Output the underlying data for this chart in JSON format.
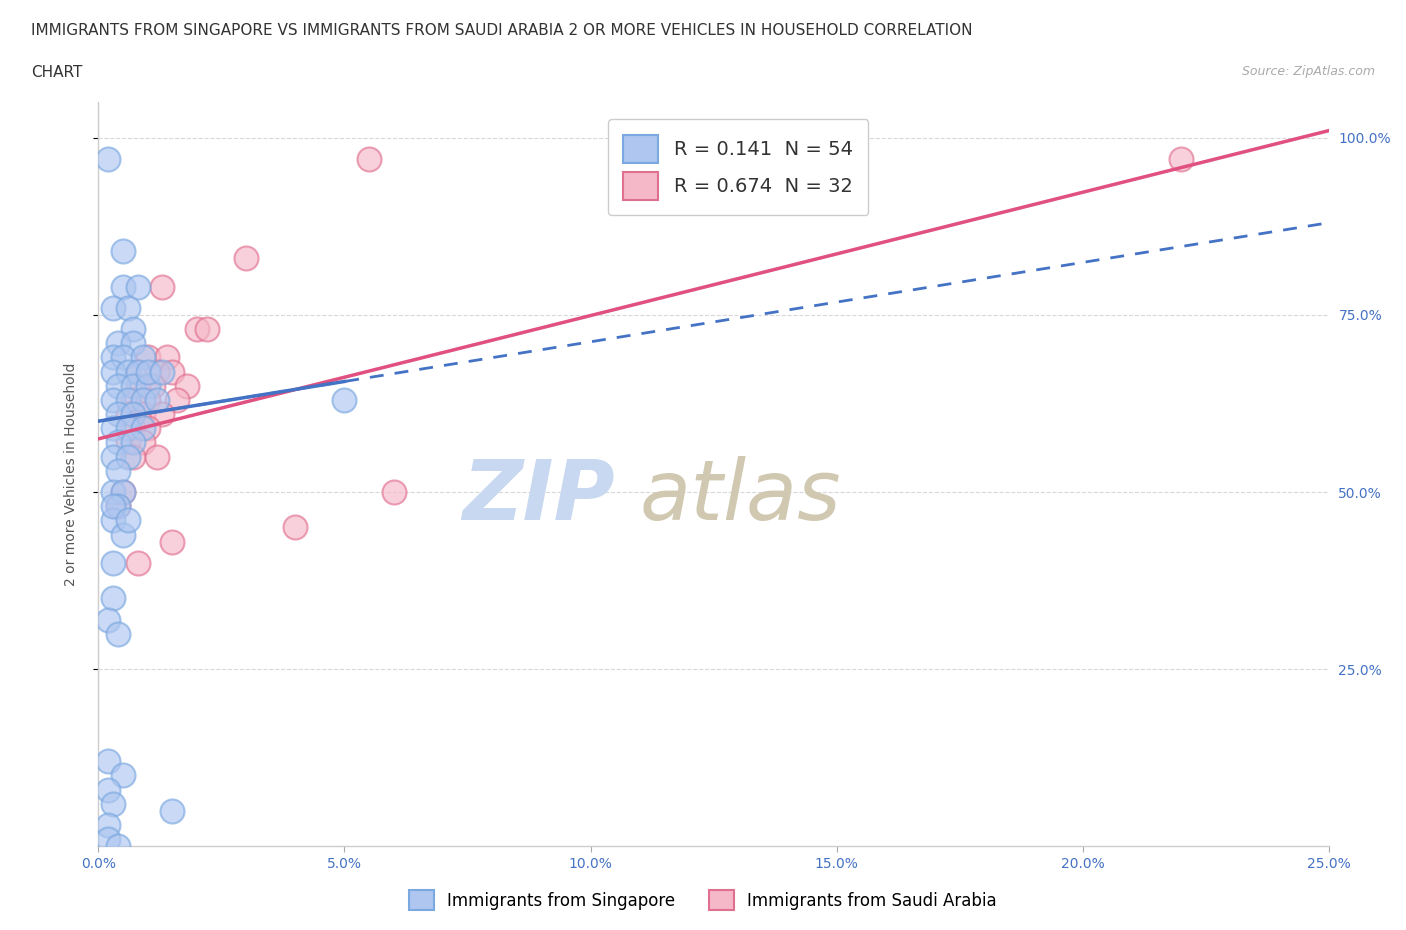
{
  "title_line1": "IMMIGRANTS FROM SINGAPORE VS IMMIGRANTS FROM SAUDI ARABIA 2 OR MORE VEHICLES IN HOUSEHOLD CORRELATION",
  "title_line2": "CHART",
  "source": "Source: ZipAtlas.com",
  "ylabel": "2 or more Vehicles in Household",
  "watermark": "ZIPatlas",
  "legend_entries": [
    {
      "label_r": "R = ",
      "r_val": "0.141",
      "label_n": "  N = ",
      "n_val": "54"
    },
    {
      "label_r": "R = ",
      "r_val": "0.674",
      "label_n": "  N = ",
      "n_val": "32"
    }
  ],
  "bottom_legend": [
    {
      "label": "Immigrants from Singapore",
      "color": "#aec6f0"
    },
    {
      "label": "Immigrants from Saudi Arabia",
      "color": "#f5b8c8"
    }
  ],
  "xmin": 0.0,
  "xmax": 0.25,
  "ymin": 0.0,
  "ymax": 1.05,
  "xtick_labels": [
    "0.0%",
    "5.0%",
    "10.0%",
    "15.0%",
    "20.0%",
    "25.0%"
  ],
  "xtick_vals": [
    0.0,
    0.05,
    0.1,
    0.15,
    0.2,
    0.25
  ],
  "ytick_labels_right": [
    "25.0%",
    "50.0%",
    "75.0%",
    "100.0%"
  ],
  "ytick_vals_right": [
    0.25,
    0.5,
    0.75,
    1.0
  ],
  "blue_scatter": [
    [
      0.002,
      0.97
    ],
    [
      0.005,
      0.84
    ],
    [
      0.005,
      0.79
    ],
    [
      0.008,
      0.79
    ],
    [
      0.003,
      0.76
    ],
    [
      0.006,
      0.76
    ],
    [
      0.007,
      0.73
    ],
    [
      0.004,
      0.71
    ],
    [
      0.007,
      0.71
    ],
    [
      0.003,
      0.69
    ],
    [
      0.005,
      0.69
    ],
    [
      0.009,
      0.69
    ],
    [
      0.003,
      0.67
    ],
    [
      0.006,
      0.67
    ],
    [
      0.008,
      0.67
    ],
    [
      0.004,
      0.65
    ],
    [
      0.007,
      0.65
    ],
    [
      0.01,
      0.65
    ],
    [
      0.003,
      0.63
    ],
    [
      0.006,
      0.63
    ],
    [
      0.009,
      0.63
    ],
    [
      0.004,
      0.61
    ],
    [
      0.007,
      0.61
    ],
    [
      0.003,
      0.59
    ],
    [
      0.006,
      0.59
    ],
    [
      0.009,
      0.59
    ],
    [
      0.004,
      0.57
    ],
    [
      0.007,
      0.57
    ],
    [
      0.003,
      0.55
    ],
    [
      0.006,
      0.55
    ],
    [
      0.004,
      0.53
    ],
    [
      0.003,
      0.5
    ],
    [
      0.005,
      0.5
    ],
    [
      0.004,
      0.48
    ],
    [
      0.003,
      0.46
    ],
    [
      0.005,
      0.44
    ],
    [
      0.01,
      0.67
    ],
    [
      0.013,
      0.67
    ],
    [
      0.012,
      0.63
    ],
    [
      0.05,
      0.63
    ],
    [
      0.003,
      0.4
    ],
    [
      0.003,
      0.35
    ],
    [
      0.002,
      0.32
    ],
    [
      0.004,
      0.3
    ],
    [
      0.003,
      0.48
    ],
    [
      0.006,
      0.46
    ],
    [
      0.002,
      0.12
    ],
    [
      0.005,
      0.1
    ],
    [
      0.002,
      0.08
    ],
    [
      0.003,
      0.06
    ],
    [
      0.002,
      0.03
    ],
    [
      0.015,
      0.05
    ],
    [
      0.002,
      0.01
    ],
    [
      0.004,
      0.0
    ]
  ],
  "pink_scatter": [
    [
      0.055,
      0.97
    ],
    [
      0.22,
      0.97
    ],
    [
      0.03,
      0.83
    ],
    [
      0.013,
      0.79
    ],
    [
      0.02,
      0.73
    ],
    [
      0.022,
      0.73
    ],
    [
      0.01,
      0.69
    ],
    [
      0.014,
      0.69
    ],
    [
      0.008,
      0.67
    ],
    [
      0.012,
      0.67
    ],
    [
      0.015,
      0.67
    ],
    [
      0.008,
      0.65
    ],
    [
      0.011,
      0.65
    ],
    [
      0.018,
      0.65
    ],
    [
      0.007,
      0.63
    ],
    [
      0.01,
      0.63
    ],
    [
      0.016,
      0.63
    ],
    [
      0.006,
      0.61
    ],
    [
      0.009,
      0.61
    ],
    [
      0.013,
      0.61
    ],
    [
      0.007,
      0.59
    ],
    [
      0.01,
      0.59
    ],
    [
      0.006,
      0.57
    ],
    [
      0.009,
      0.57
    ],
    [
      0.007,
      0.55
    ],
    [
      0.012,
      0.55
    ],
    [
      0.005,
      0.5
    ],
    [
      0.004,
      0.48
    ],
    [
      0.06,
      0.5
    ],
    [
      0.015,
      0.43
    ],
    [
      0.008,
      0.4
    ],
    [
      0.04,
      0.45
    ]
  ],
  "blue_line_color": "#4472c4",
  "pink_line_color": "#e05080",
  "scatter_blue_face": "#aec6f0",
  "scatter_blue_edge": "#7aa8e0",
  "scatter_pink_face": "#f5b8c8",
  "scatter_pink_edge": "#e07090",
  "grid_color": "#d8d8d8",
  "background_color": "#ffffff",
  "watermark_color_zip": "#c8d8f0",
  "watermark_color_atlas": "#d0c8b0",
  "title_fontsize": 11,
  "axis_label_fontsize": 10,
  "tick_fontsize": 10,
  "legend_fontsize": 14,
  "watermark_fontsize": 60,
  "source_fontsize": 9
}
